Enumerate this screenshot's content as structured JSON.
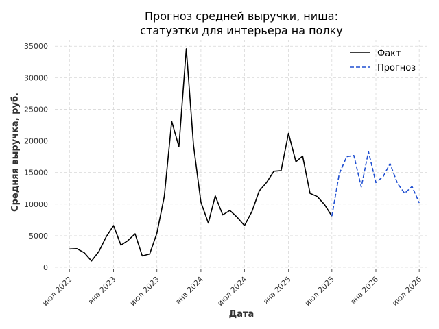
{
  "chart_data": {
    "type": "line",
    "title": [
      "Прогноз средней выручки, ниша:",
      "статуэтки для интерьера на полку"
    ],
    "xlabel": "Дата",
    "ylabel": "Средняя выручка, руб.",
    "ylim": [
      0,
      36000
    ],
    "yticks": [
      0,
      5000,
      10000,
      15000,
      20000,
      25000,
      30000,
      35000
    ],
    "xlim": [
      "2022-05-01",
      "2026-08-01"
    ],
    "xticks": [
      {
        "date": "2022-07-01",
        "label": "июл 2022"
      },
      {
        "date": "2023-01-01",
        "label": "янв 2023"
      },
      {
        "date": "2023-07-01",
        "label": "июл 2023"
      },
      {
        "date": "2024-01-01",
        "label": "янв 2024"
      },
      {
        "date": "2024-07-01",
        "label": "июл 2024"
      },
      {
        "date": "2025-01-01",
        "label": "янв 2025"
      },
      {
        "date": "2025-07-01",
        "label": "июл 2025"
      },
      {
        "date": "2026-01-01",
        "label": "янв 2026"
      },
      {
        "date": "2026-07-01",
        "label": "июл 2026"
      }
    ],
    "grid": true,
    "legend_position": "top-right",
    "series": [
      {
        "name": "Факт",
        "color": "#000000",
        "style": "solid",
        "points": [
          [
            "2022-07-01",
            2900
          ],
          [
            "2022-08-01",
            2950
          ],
          [
            "2022-09-01",
            2300
          ],
          [
            "2022-10-01",
            1000
          ],
          [
            "2022-11-01",
            2500
          ],
          [
            "2022-12-01",
            4800
          ],
          [
            "2023-01-01",
            6600
          ],
          [
            "2023-02-01",
            3500
          ],
          [
            "2023-03-01",
            4200
          ],
          [
            "2023-04-01",
            5300
          ],
          [
            "2023-05-01",
            1800
          ],
          [
            "2023-06-01",
            2100
          ],
          [
            "2023-07-01",
            5400
          ],
          [
            "2023-08-01",
            11200
          ],
          [
            "2023-09-01",
            23100
          ],
          [
            "2023-10-01",
            19100
          ],
          [
            "2023-11-01",
            34600
          ],
          [
            "2023-12-01",
            19300
          ],
          [
            "2024-01-01",
            10300
          ],
          [
            "2024-02-01",
            7000
          ],
          [
            "2024-03-01",
            11300
          ],
          [
            "2024-04-01",
            8300
          ],
          [
            "2024-05-01",
            9000
          ],
          [
            "2024-06-01",
            7900
          ],
          [
            "2024-07-01",
            6600
          ],
          [
            "2024-08-01",
            8800
          ],
          [
            "2024-09-01",
            12100
          ],
          [
            "2024-10-01",
            13400
          ],
          [
            "2024-11-01",
            15200
          ],
          [
            "2024-12-01",
            15300
          ],
          [
            "2025-01-01",
            21200
          ],
          [
            "2025-02-01",
            16700
          ],
          [
            "2025-03-01",
            17600
          ],
          [
            "2025-04-01",
            11700
          ],
          [
            "2025-05-01",
            11200
          ],
          [
            "2025-06-01",
            9900
          ],
          [
            "2025-07-01",
            8100
          ]
        ]
      },
      {
        "name": "Прогноз",
        "color": "#1f4fd1",
        "style": "dashed",
        "points": [
          [
            "2025-07-01",
            8100
          ],
          [
            "2025-08-01",
            14800
          ],
          [
            "2025-09-01",
            17500
          ],
          [
            "2025-10-01",
            17700
          ],
          [
            "2025-11-01",
            12700
          ],
          [
            "2025-12-01",
            18300
          ],
          [
            "2026-01-01",
            13400
          ],
          [
            "2026-02-01",
            14400
          ],
          [
            "2026-03-01",
            16400
          ],
          [
            "2026-04-01",
            13300
          ],
          [
            "2026-05-01",
            11700
          ],
          [
            "2026-06-01",
            12800
          ],
          [
            "2026-07-01",
            10200
          ]
        ]
      }
    ]
  }
}
